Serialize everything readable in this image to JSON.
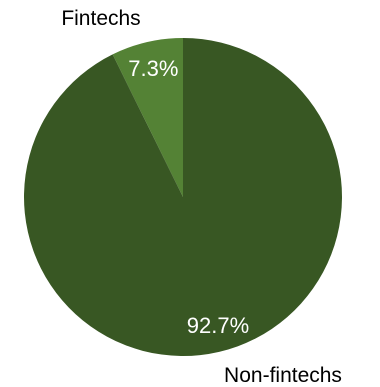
{
  "chart_data": {
    "type": "pie",
    "categories": [
      "Fintechs",
      "Non-fintechs"
    ],
    "values": [
      7.3,
      92.7
    ],
    "data_labels": [
      "7.3%",
      "92.7%"
    ],
    "colors": [
      "#548235",
      "#385723"
    ],
    "legend": "none"
  }
}
